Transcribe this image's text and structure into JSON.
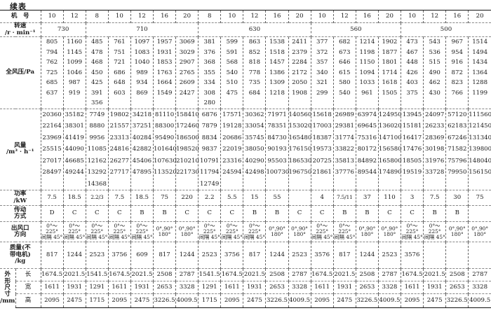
{
  "title": "续表",
  "labels": {
    "model": "机　号",
    "speed": "转速\n/r · min⁻¹",
    "pressure": "全风压/Pa",
    "airflow": "风量\n/m³ · h⁻¹",
    "power": "功率\n/kW",
    "drive": "传动\n方式",
    "outlet": "出风口\n方向",
    "mass": "质量(不\n带电机)\n/kg",
    "dims": "外\n形\n尺\n寸\n/mm",
    "length": "长",
    "width": "宽",
    "height": "高"
  },
  "model_numbers": [
    "10",
    "12",
    "8",
    "10",
    "12",
    "16",
    "20",
    "8",
    "10",
    "12",
    "16",
    "20",
    "10",
    "12",
    "16",
    "20",
    "10",
    "12",
    "16",
    "20"
  ],
  "speed_groups": [
    {
      "value": "730",
      "span": 2
    },
    {
      "value": "710",
      "span": 5
    },
    {
      "value": "630",
      "span": 5
    },
    {
      "value": "560",
      "span": 4
    },
    {
      "value": "500",
      "span": 4
    }
  ],
  "pressure": [
    [
      "805",
      "794",
      "762",
      "725",
      "685",
      "637"
    ],
    [
      "1160",
      "1145",
      "1099",
      "1046",
      "987",
      "919"
    ],
    [
      "485",
      "478",
      "468",
      "450",
      "425",
      "391",
      "356"
    ],
    [
      "761",
      "751",
      "721",
      "686",
      "648",
      "603"
    ],
    [
      "1097",
      "1083",
      "1040",
      "989",
      "934",
      "869"
    ],
    [
      "1957",
      "1931",
      "1853",
      "1763",
      "1664",
      "1549"
    ],
    [
      "3069",
      "3029",
      "2907",
      "2765",
      "2609",
      "2427"
    ],
    [
      "381",
      "376",
      "368",
      "355",
      "334",
      "308",
      "280"
    ],
    [
      "599",
      "591",
      "568",
      "540",
      "510",
      "475"
    ],
    [
      "863",
      "852",
      "818",
      "778",
      "735",
      "684"
    ],
    [
      "1538",
      "1518",
      "1457",
      "1386",
      "1309",
      "1218"
    ],
    [
      "2411",
      "2379",
      "2284",
      "2172",
      "2050",
      "1908"
    ],
    [
      "377",
      "372",
      "357",
      "340",
      "321",
      "299"
    ],
    [
      "682",
      "673",
      "646",
      "615",
      "580",
      "540"
    ],
    [
      "1214",
      "1198",
      "1150",
      "1094",
      "1033",
      "961"
    ],
    [
      "1902",
      "1877",
      "1801",
      "1714",
      "1618",
      "1505"
    ],
    [
      "473",
      "467",
      "448",
      "426",
      "403",
      "375"
    ],
    [
      "543",
      "536",
      "515",
      "490",
      "462",
      "430"
    ],
    [
      "967",
      "954",
      "916",
      "872",
      "823",
      "766"
    ],
    [
      "1514",
      "1494",
      "1434",
      "1364",
      "1288",
      "1199"
    ]
  ],
  "airflow": [
    [
      "20360",
      "22164",
      "23969",
      "25515",
      "27017",
      "28497"
    ],
    [
      "35182",
      "38301",
      "41419",
      "44090",
      "46685",
      "49244"
    ],
    [
      "7749",
      "8880",
      "9956",
      "11085",
      "12162",
      "13292",
      "14368"
    ],
    [
      "19802",
      "21557",
      "23313",
      "24816",
      "26277",
      "27717"
    ],
    [
      "34218",
      "37251",
      "40284",
      "42882",
      "45406",
      "47895"
    ],
    [
      "81110",
      "88300",
      "95490",
      "101640",
      "107630",
      "113520"
    ],
    [
      "158410",
      "172460",
      "186500",
      "198520",
      "210210",
      "221730"
    ],
    [
      "6876",
      "7879",
      "8834",
      "9837",
      "10791",
      "11794",
      "12749"
    ],
    [
      "17571",
      "19128",
      "20686",
      "22019",
      "23316",
      "24594"
    ],
    [
      "30362",
      "33054",
      "35745",
      "38050",
      "40290",
      "42498"
    ],
    [
      "71971",
      "78351",
      "84730",
      "90193",
      "95503",
      "100730"
    ],
    [
      "140560",
      "153020",
      "165480",
      "176150",
      "186530",
      "196750"
    ],
    [
      "15618",
      "17003",
      "18387",
      "19573",
      "20725",
      "21861"
    ],
    [
      "26989",
      "29381",
      "31774",
      "33822",
      "35813",
      "37776"
    ],
    [
      "63974",
      "69645",
      "75316",
      "80172",
      "84892",
      "89544"
    ],
    [
      "124950",
      "136020",
      "147100",
      "156580",
      "165800",
      "174890"
    ],
    [
      "13945",
      "15181",
      "16417",
      "17476",
      "18505",
      "19519"
    ],
    [
      "24097",
      "26233",
      "28369",
      "30198",
      "31976",
      "33728"
    ],
    [
      "57120",
      "62183",
      "67246",
      "71582",
      "75796",
      "79950"
    ],
    [
      "111560",
      "121450",
      "131340",
      "139800",
      "148040",
      "156150"
    ]
  ],
  "power": [
    "7.5",
    "18.5",
    "2.2/3",
    "7.5",
    "18.5",
    "75",
    "220",
    "2.2",
    "5.5",
    "15",
    "55",
    "",
    "4",
    "7.5/11",
    "37",
    "110",
    "3",
    "7.5",
    "30",
    "75"
  ],
  "drive": [
    "D",
    "C",
    "C",
    "C",
    "B",
    "B",
    "C",
    "C",
    "C",
    "B",
    "B",
    "C",
    "C",
    "B",
    "B",
    "C",
    "C",
    "B",
    "B",
    ""
  ],
  "outlet_options": {
    "a": "0°～225°\n间隔 45°",
    "b": "0°,90°\n180°"
  },
  "outlet": [
    "a",
    "a",
    "a",
    "a",
    "a",
    "b",
    "b",
    "a",
    "a",
    "a",
    "b",
    "b",
    "a",
    "a",
    "b",
    "b",
    "a",
    "a",
    "b",
    "b"
  ],
  "mass": [
    "817",
    "1244",
    "2523",
    "3756",
    "609",
    "817",
    "1244",
    "2523",
    "3756",
    "817",
    "1244",
    "2523",
    "3576",
    "817",
    "1244",
    "2523",
    "3576",
    "",
    "",
    ""
  ],
  "length": [
    "1674.5",
    "2021.5",
    "1541.5",
    "1674.5",
    "2021.5",
    "2508",
    "2787",
    "1541.5",
    "1674.5",
    "2021.5",
    "2508",
    "2787",
    "1674.5",
    "2021.5",
    "2508",
    "2787",
    "1674.5",
    "2021.5",
    "2508",
    "2787"
  ],
  "width": [
    "1611",
    "1931",
    "1291",
    "1611",
    "1931",
    "2653",
    "3328",
    "1291",
    "1611",
    "1931",
    "2653",
    "3328",
    "1611",
    "1931",
    "2653",
    "3328",
    "1611",
    "1931",
    "2653",
    "3328"
  ],
  "height": [
    "2095",
    "2475",
    "1715",
    "2095",
    "2475",
    "3226.5",
    "4009.5",
    "1715",
    "2095",
    "2475",
    "3226.5",
    "4009.5",
    "2095",
    "2475",
    "3226.5",
    "4009.5",
    "2095",
    "2475",
    "3226.5",
    "4009.5"
  ]
}
